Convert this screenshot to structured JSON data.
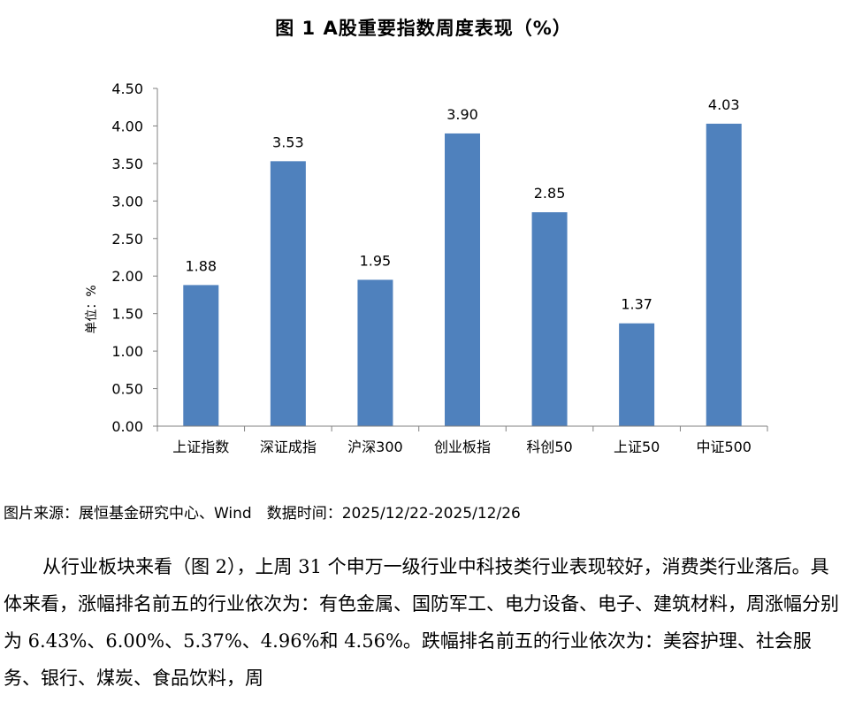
{
  "figure": {
    "title": "图 1 A股重要指数周度表现（%）",
    "source": "图片来源：展恒基金研究中心、Wind　数据时间：2025/12/22-2025/12/26"
  },
  "chart_data": {
    "type": "bar",
    "title": "图 1 A股重要指数周度表现（%）",
    "ylabel": "单位：%",
    "xlabel": "",
    "categories": [
      "上证指数",
      "深证成指",
      "沪深300",
      "创业板指",
      "科创50",
      "上证50",
      "中证500"
    ],
    "values": [
      1.88,
      3.53,
      1.95,
      3.9,
      2.85,
      1.37,
      4.03
    ],
    "data_labels": [
      "1.88",
      "3.53",
      "1.95",
      "3.90",
      "2.85",
      "1.37",
      "4.03"
    ],
    "ylim": [
      0,
      4.5
    ],
    "yticks": [
      "0.00",
      "0.50",
      "1.00",
      "1.50",
      "2.00",
      "2.50",
      "3.00",
      "3.50",
      "4.00",
      "4.50"
    ],
    "grid": false,
    "legend": "none",
    "bar_color": "#4F81BD"
  },
  "body": {
    "paragraph": "从行业板块来看（图 2），上周 31 个申万一级行业中科技类行业表现较好，消费类行业落后。具体来看，涨幅排名前五的行业依次为：有色金属、国防军工、电力设备、电子、建筑材料，周涨幅分别为 6.43%、6.00%、5.37%、4.96%和 4.56%。跌幅排名前五的行业依次为：美容护理、社会服务、银行、煤炭、食品饮料，周"
  }
}
